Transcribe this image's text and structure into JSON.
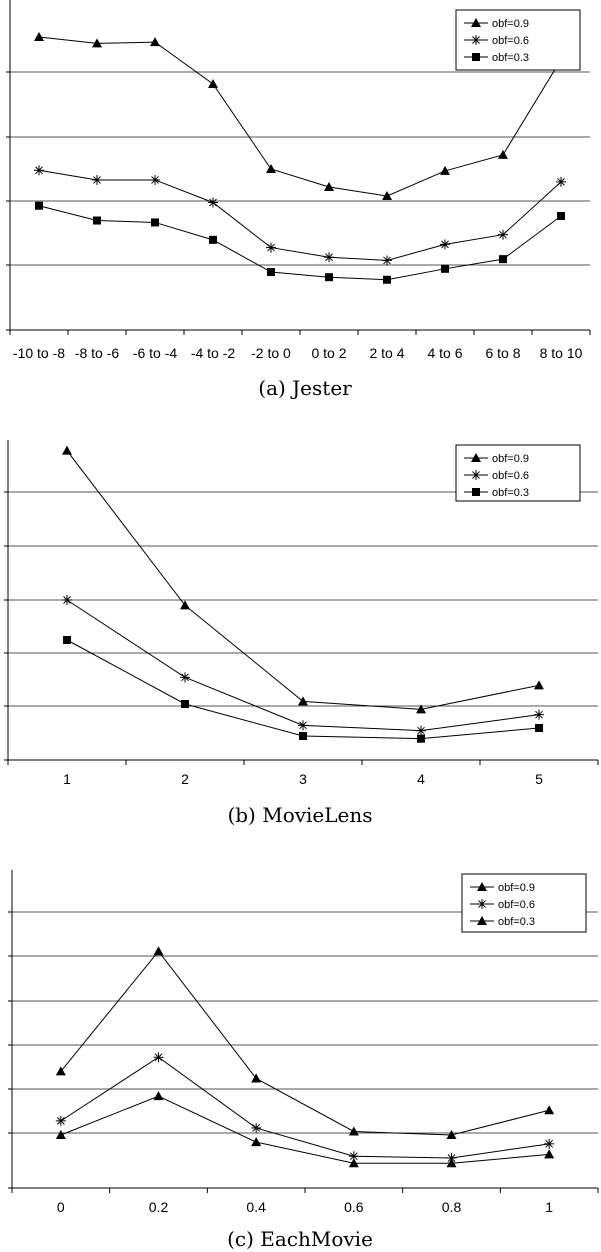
{
  "chart_data": [
    {
      "type": "line",
      "caption": "(a) Jester",
      "categories": [
        "-10 to -8",
        "-8 to -6",
        "-6 to -4",
        "-4 to -2",
        "-2 to 0",
        "0 to 2",
        "2 to 4",
        "4 to 6",
        "6 to 8",
        "8 to 10"
      ],
      "ylim": [
        0,
        5
      ],
      "grid": true,
      "legend_position": "top-right",
      "series": [
        {
          "name": "obf=0.9",
          "marker": "triangle",
          "values": [
            4.55,
            4.45,
            4.47,
            3.82,
            2.5,
            2.22,
            2.08,
            2.47,
            2.72,
            4.2
          ]
        },
        {
          "name": "obf=0.6",
          "marker": "asterisk",
          "values": [
            2.48,
            2.33,
            2.33,
            1.98,
            1.28,
            1.13,
            1.08,
            1.33,
            1.48,
            2.3
          ]
        },
        {
          "name": "obf=0.3",
          "marker": "square",
          "values": [
            1.93,
            1.7,
            1.67,
            1.4,
            0.9,
            0.82,
            0.78,
            0.95,
            1.1,
            1.77
          ]
        }
      ]
    },
    {
      "type": "line",
      "caption": "(b) MovieLens",
      "categories": [
        "1",
        "2",
        "3",
        "4",
        "5"
      ],
      "ylim": [
        0,
        6
      ],
      "grid": true,
      "legend_position": "top-right",
      "series": [
        {
          "name": "obf=0.9",
          "marker": "triangle",
          "values": [
            5.8,
            2.9,
            1.1,
            0.95,
            1.4
          ]
        },
        {
          "name": "obf=0.6",
          "marker": "asterisk",
          "values": [
            3.0,
            1.55,
            0.65,
            0.55,
            0.85
          ]
        },
        {
          "name": "obf=0.3",
          "marker": "square",
          "values": [
            2.25,
            1.05,
            0.45,
            0.4,
            0.6
          ]
        }
      ]
    },
    {
      "type": "line",
      "caption": "(c) EachMovie",
      "categories": [
        "0",
        "0.2",
        "0.4",
        "0.6",
        "0.8",
        "1"
      ],
      "ylim": [
        -1,
        8
      ],
      "grid": true,
      "legend_position": "top-right",
      "series": [
        {
          "name": "obf=0.9",
          "marker": "triangle",
          "values": [
            2.3,
            5.7,
            2.1,
            0.6,
            0.5,
            1.2
          ]
        },
        {
          "name": "obf=0.6",
          "marker": "asterisk",
          "values": [
            0.9,
            2.7,
            0.7,
            -0.1,
            -0.15,
            0.25
          ]
        },
        {
          "name": "obf=0.3",
          "marker": "triangle",
          "values": [
            0.5,
            1.6,
            0.3,
            -0.3,
            -0.3,
            -0.05
          ]
        }
      ]
    }
  ]
}
